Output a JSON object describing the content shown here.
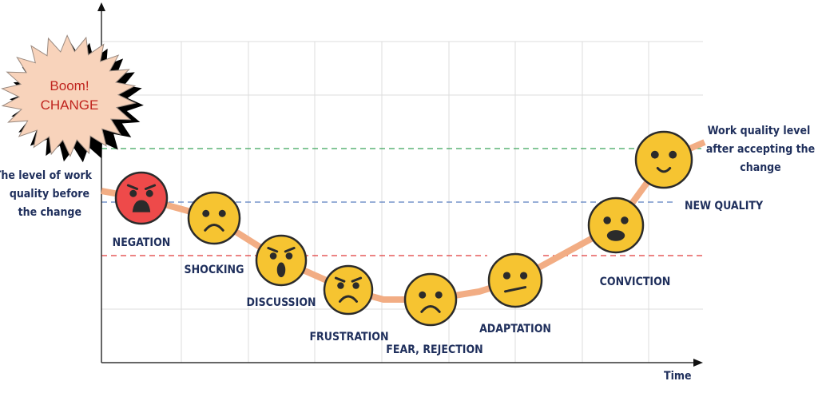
{
  "burst": {
    "line1": "Boom!",
    "line2": "CHANGE",
    "fill": "#f8d3bb",
    "text_color": "#c0241e"
  },
  "left_note": {
    "lines": [
      "The level of work",
      "quality before",
      "the change"
    ]
  },
  "right_note": {
    "lines": [
      "Work quality level",
      "after accepting the",
      "change"
    ]
  },
  "new_quality": "NEW QUALITY",
  "axis": {
    "x_label": "Time"
  },
  "reference_lines": [
    {
      "name": "green",
      "color": "#3aa55a"
    },
    {
      "name": "blue",
      "color": "#5b7fc0"
    },
    {
      "name": "red",
      "color": "#e03a3a"
    }
  ],
  "stages": [
    {
      "label": "NEGATION",
      "face": "angry-red",
      "fill": "#ee4a4a"
    },
    {
      "label": "SHOCKING",
      "face": "sad",
      "fill": "#f6c431"
    },
    {
      "label": "DISCUSSION",
      "face": "shocked-angry",
      "fill": "#f6c431"
    },
    {
      "label": "FRUSTRATION",
      "face": "angry-frown",
      "fill": "#f6c431"
    },
    {
      "label": "FEAR, REJECTION",
      "face": "sad",
      "fill": "#f6c431"
    },
    {
      "label": "ADAPTATION",
      "face": "neutral",
      "fill": "#f6c431"
    },
    {
      "label": "CONVICTION",
      "face": "surprised",
      "fill": "#f6c431"
    },
    {
      "label": "",
      "face": "smile",
      "fill": "#f6c431"
    }
  ],
  "colors": {
    "curve": "#f2ad84",
    "text": "#1f2f5c",
    "grid": "#dcdcdc",
    "outline": "#2b2b2b"
  }
}
